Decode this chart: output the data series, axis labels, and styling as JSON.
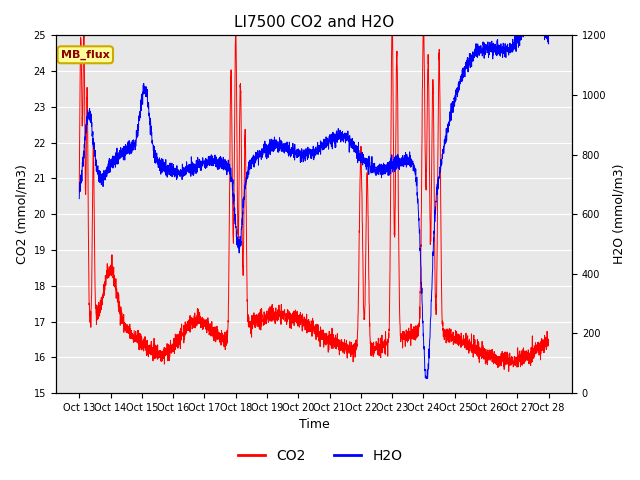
{
  "title": "LI7500 CO2 and H2O",
  "xlabel": "Time",
  "ylabel_left": "CO2 (mmol/m3)",
  "ylabel_right": "H2O (mmol/m3)",
  "ylim_left": [
    15.0,
    25.0
  ],
  "ylim_right": [
    0,
    1200
  ],
  "xtick_labels": [
    "Oct 13",
    "Oct 14",
    "Oct 15",
    "Oct 16",
    "Oct 17",
    "Oct 18",
    "Oct 19",
    "Oct 20",
    "Oct 21",
    "Oct 22",
    "Oct 23",
    "Oct 24",
    "Oct 25",
    "Oct 26",
    "Oct 27",
    "Oct 28"
  ],
  "co2_color": "#FF0000",
  "h2o_color": "#0000FF",
  "legend_label_co2": "CO2",
  "legend_label_h2o": "H2O",
  "annotation_text": "MB_flux",
  "annotation_bg": "#FFFF99",
  "annotation_border": "#CCAA00",
  "background_color": "#E8E8E8",
  "grid_color": "#FFFFFF",
  "n_points": 3000,
  "seed": 42
}
